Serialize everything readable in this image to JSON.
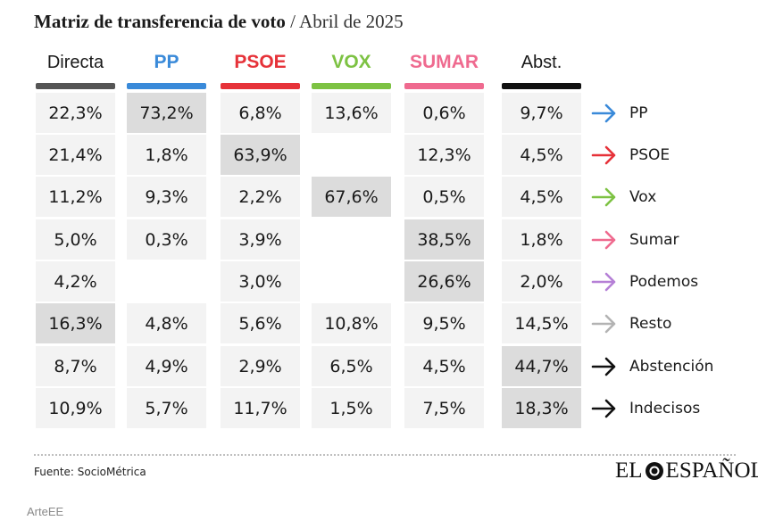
{
  "title": {
    "main": "Matriz de transferencia de voto",
    "sub": "/ Abril de 2025"
  },
  "chart_data": {
    "type": "table",
    "columns": [
      {
        "label": "Directa",
        "color": "#555555",
        "party": false
      },
      {
        "label": "PP",
        "color": "#3a8ad9",
        "party": true
      },
      {
        "label": "PSOE",
        "color": "#e63239",
        "party": true
      },
      {
        "label": "VOX",
        "color": "#7dc243",
        "party": true
      },
      {
        "label": "SUMAR",
        "color": "#ef6a8f",
        "party": true
      },
      {
        "label": "Abst.",
        "color": "#111111",
        "party": false
      }
    ],
    "rows": [
      {
        "label": "PP",
        "arrow_color": "#3a8ad9",
        "values": [
          "22,3%",
          "73,2%",
          "6,8%",
          "13,6%",
          "0,6%",
          "9,7%"
        ],
        "levels": [
          1,
          2,
          1,
          1,
          1,
          1
        ]
      },
      {
        "label": "PSOE",
        "arrow_color": "#e63239",
        "values": [
          "21,4%",
          "1,8%",
          "63,9%",
          "",
          "12,3%",
          "4,5%"
        ],
        "levels": [
          1,
          1,
          2,
          1,
          1,
          1
        ]
      },
      {
        "label": "Vox",
        "arrow_color": "#7dc243",
        "values": [
          "11,2%",
          "9,3%",
          "2,2%",
          "67,6%",
          "0,5%",
          "4,5%"
        ],
        "levels": [
          1,
          1,
          1,
          2,
          1,
          1
        ]
      },
      {
        "label": "Sumar",
        "arrow_color": "#ef6a8f",
        "values": [
          "5,0%",
          "0,3%",
          "3,9%",
          "",
          "38,5%",
          "1,8%"
        ],
        "levels": [
          1,
          1,
          1,
          1,
          2,
          1
        ]
      },
      {
        "label": "Podemos",
        "arrow_color": "#b57fd6",
        "values": [
          "4,2%",
          "",
          "3,0%",
          "",
          "26,6%",
          "2,0%"
        ],
        "levels": [
          1,
          1,
          1,
          1,
          2,
          1
        ]
      },
      {
        "label": "Resto",
        "arrow_color": "#b3b3b3",
        "values": [
          "16,3%",
          "4,8%",
          "5,6%",
          "10,8%",
          "9,5%",
          "14,5%"
        ],
        "levels": [
          2,
          1,
          1,
          1,
          1,
          1
        ]
      },
      {
        "label": "Abstención",
        "arrow_color": "#111111",
        "values": [
          "8,7%",
          "4,9%",
          "2,9%",
          "6,5%",
          "4,5%",
          "44,7%"
        ],
        "levels": [
          1,
          1,
          1,
          1,
          1,
          2
        ]
      },
      {
        "label": "Indecisos",
        "arrow_color": "#111111",
        "values": [
          "10,9%",
          "5,7%",
          "11,7%",
          "1,5%",
          "7,5%",
          "18,3%"
        ],
        "levels": [
          1,
          1,
          1,
          1,
          1,
          2
        ]
      }
    ]
  },
  "footer": {
    "source": "Fuente: SocioMétrica",
    "logo_left": "EL",
    "logo_right": "ESPAÑOL",
    "credit": "ArteEE"
  }
}
